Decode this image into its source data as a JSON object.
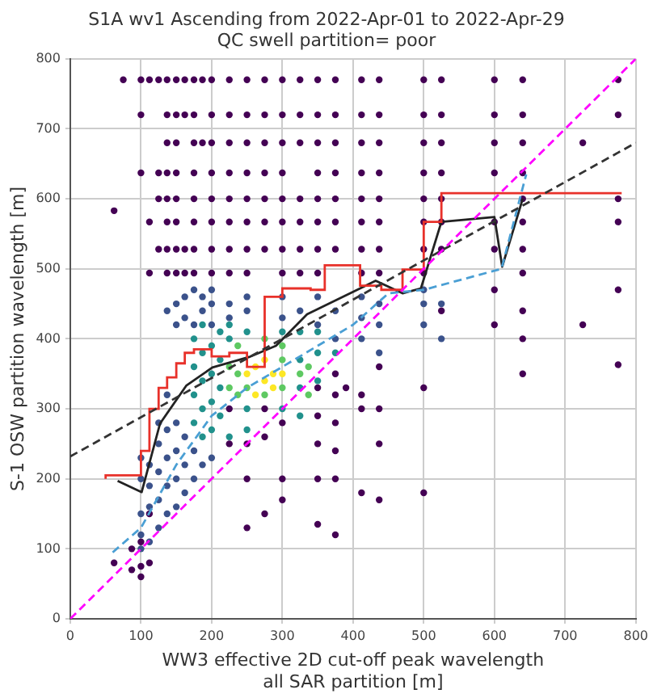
{
  "chart_data": {
    "type": "scatter",
    "title": "S1A wv1 Ascending from 2022-Apr-01 to 2022-Apr-29",
    "subtitle": "QC swell partition= poor",
    "xlabel": "WW3 effective 2D cut-off peak wavelength\nall SAR partition [m]",
    "ylabel": "S-1 OSW partition wavelength [m]",
    "xlim": [
      0,
      800
    ],
    "ylim": [
      0,
      800
    ],
    "xticks": [
      0,
      100,
      200,
      300,
      400,
      500,
      600,
      700,
      800
    ],
    "yticks": [
      0,
      100,
      200,
      300,
      400,
      500,
      600,
      700,
      800
    ],
    "grid": true,
    "legend": false,
    "marker": "circle",
    "series": [
      {
        "type": "scatter",
        "color": "#440154",
        "x": [
          75,
          100,
          112,
          125,
          137,
          150,
          162,
          175,
          187,
          200,
          225,
          250,
          275,
          300,
          325,
          350,
          375,
          412,
          437,
          500,
          525,
          600,
          640,
          775,
          100,
          137,
          150,
          162,
          175,
          200,
          225,
          250,
          275,
          300,
          325,
          350,
          375,
          412,
          437,
          500,
          525,
          600,
          640,
          775,
          137,
          150,
          175,
          187,
          200,
          225,
          250,
          275,
          300,
          325,
          350,
          375,
          412,
          437,
          500,
          525,
          600,
          640,
          725,
          100,
          125,
          137,
          150,
          175,
          200,
          225,
          250,
          275,
          300,
          350,
          375,
          412,
          437,
          500,
          525,
          600,
          640,
          125,
          137,
          150,
          175,
          200,
          225,
          250,
          275,
          300,
          325,
          350,
          375,
          412,
          437,
          500,
          525,
          640,
          775,
          112,
          137,
          150,
          175,
          200,
          225,
          250,
          275,
          300,
          325,
          350,
          375,
          412,
          437,
          500,
          525,
          600,
          640,
          775,
          125,
          137,
          150,
          162,
          175,
          200,
          225,
          250,
          275,
          300,
          325,
          350,
          375,
          412,
          437,
          500,
          525,
          600,
          640,
          112,
          137,
          150,
          162,
          175,
          200,
          225,
          250,
          300,
          325,
          350,
          412,
          437,
          500,
          640,
          62,
          725,
          775,
          775,
          640,
          640,
          640,
          600,
          600,
          390,
          350,
          350,
          350,
          350,
          350,
          375,
          375,
          375,
          375,
          375,
          375,
          412,
          412,
          412,
          437,
          437,
          437,
          437,
          500,
          500,
          525,
          100,
          100,
          100,
          87,
          87,
          62,
          112,
          112,
          225,
          225,
          250,
          250,
          250,
          275,
          275,
          275,
          300,
          300,
          300
        ],
        "values": [
          770,
          770,
          770,
          770,
          770,
          770,
          770,
          770,
          770,
          770,
          770,
          770,
          770,
          770,
          770,
          770,
          770,
          770,
          770,
          770,
          770,
          770,
          770,
          770,
          720,
          720,
          720,
          720,
          720,
          720,
          720,
          720,
          720,
          720,
          720,
          720,
          720,
          720,
          720,
          720,
          720,
          720,
          720,
          720,
          680,
          680,
          680,
          680,
          680,
          680,
          680,
          680,
          680,
          680,
          680,
          680,
          680,
          680,
          680,
          680,
          680,
          680,
          680,
          637,
          637,
          637,
          637,
          637,
          637,
          637,
          637,
          637,
          637,
          637,
          637,
          637,
          637,
          637,
          637,
          637,
          637,
          600,
          600,
          600,
          600,
          600,
          600,
          600,
          600,
          600,
          600,
          600,
          600,
          600,
          600,
          600,
          600,
          600,
          600,
          567,
          567,
          567,
          567,
          567,
          567,
          567,
          567,
          567,
          567,
          567,
          567,
          567,
          567,
          567,
          567,
          567,
          567,
          567,
          528,
          528,
          528,
          528,
          528,
          528,
          528,
          528,
          528,
          528,
          528,
          528,
          528,
          528,
          528,
          528,
          528,
          528,
          528,
          494,
          494,
          494,
          494,
          494,
          494,
          494,
          494,
          494,
          494,
          494,
          494,
          494,
          494,
          494,
          583,
          420,
          363,
          470,
          440,
          400,
          350,
          470,
          420,
          330,
          330,
          290,
          250,
          200,
          135,
          350,
          320,
          280,
          240,
          200,
          120,
          320,
          300,
          180,
          360,
          300,
          250,
          170,
          330,
          180,
          440,
          60,
          75,
          110,
          70,
          100,
          80,
          80,
          150,
          300,
          250,
          250,
          200,
          130,
          300,
          260,
          150,
          280,
          200,
          170
        ]
      },
      {
        "type": "scatter",
        "color": "#3b528b",
        "x": [
          100,
          100,
          100,
          100,
          100,
          112,
          112,
          112,
          112,
          125,
          125,
          125,
          125,
          125,
          137,
          137,
          137,
          137,
          137,
          137,
          150,
          150,
          150,
          150,
          150,
          150,
          162,
          162,
          162,
          162,
          162,
          175,
          175,
          175,
          175,
          187,
          187,
          187,
          200,
          200,
          200,
          200,
          225,
          225,
          250,
          250,
          300,
          300,
          325,
          350,
          350,
          375,
          375,
          412,
          412,
          412,
          437,
          437,
          437,
          500,
          500,
          500,
          525,
          525
        ],
        "values": [
          100,
          120,
          150,
          200,
          230,
          110,
          160,
          190,
          220,
          130,
          170,
          210,
          250,
          280,
          150,
          190,
          230,
          270,
          320,
          440,
          160,
          200,
          240,
          280,
          420,
          450,
          180,
          220,
          260,
          430,
          460,
          200,
          240,
          420,
          470,
          220,
          440,
          460,
          230,
          420,
          450,
          470,
          430,
          450,
          440,
          460,
          430,
          460,
          440,
          420,
          460,
          400,
          440,
          400,
          430,
          460,
          380,
          420,
          450,
          420,
          450,
          470,
          400,
          450
        ]
      },
      {
        "type": "scatter",
        "color": "#21918c",
        "x": [
          175,
          175,
          175,
          175,
          187,
          187,
          187,
          187,
          187,
          200,
          200,
          200,
          200,
          212,
          212,
          212,
          212,
          225,
          225,
          225,
          250,
          250,
          250,
          300,
          300,
          325,
          325,
          325,
          325,
          350,
          350,
          350,
          375
        ],
        "values": [
          280,
          320,
          360,
          400,
          260,
          300,
          340,
          380,
          420,
          270,
          310,
          350,
          390,
          290,
          330,
          370,
          410,
          260,
          400,
          420,
          270,
          300,
          410,
          300,
          410,
          290,
          330,
          370,
          410,
          340,
          380,
          410,
          380
        ]
      },
      {
        "type": "scatter",
        "color": "#5ec962",
        "x": [
          225,
          225,
          237,
          237,
          237,
          250,
          275,
          275,
          300,
          300,
          300,
          325,
          337,
          337
        ],
        "values": [
          330,
          360,
          320,
          350,
          390,
          330,
          320,
          400,
          330,
          370,
          390,
          350,
          320,
          360
        ]
      },
      {
        "type": "scatter",
        "color": "#fde725",
        "x": [
          250,
          262,
          262,
          275,
          275,
          287,
          287,
          300
        ],
        "values": [
          350,
          320,
          360,
          340,
          370,
          330,
          350,
          350
        ]
      },
      {
        "type": "line",
        "color": "#ff00ff",
        "line_style": "dashed",
        "marker": "none",
        "x": [
          0,
          800
        ],
        "values": [
          0,
          800
        ]
      },
      {
        "type": "line",
        "color": "#333333",
        "line_style": "dashed",
        "marker": "none",
        "x": [
          0,
          800
        ],
        "values": [
          232,
          680
        ]
      },
      {
        "type": "line",
        "color": "#4a9fd4",
        "line_style": "dashed",
        "marker": "none",
        "x": [
          60,
          100,
          150,
          200,
          250,
          300,
          350,
          400,
          450,
          500,
          610,
          645
        ],
        "values": [
          95,
          130,
          220,
          290,
          330,
          360,
          390,
          420,
          465,
          470,
          500,
          635
        ]
      },
      {
        "type": "step",
        "color": "#e8312a",
        "line_style": "solid",
        "marker": "none",
        "x": [
          50,
          100,
          112,
          125,
          137,
          150,
          162,
          175,
          200,
          225,
          250,
          275,
          300,
          340,
          360,
          410,
          440,
          470,
          500,
          525,
          640,
          780
        ],
        "values": [
          200,
          205,
          240,
          300,
          330,
          345,
          365,
          380,
          385,
          375,
          380,
          360,
          460,
          472,
          470,
          505,
          476,
          470,
          499,
          567,
          608,
          608
        ]
      },
      {
        "type": "line",
        "color": "#222222",
        "line_style": "solid",
        "marker": "none",
        "x": [
          67,
          101,
          127,
          164,
          201,
          253,
          291,
          335,
          410,
          432,
          470,
          496,
          525,
          600,
          611,
          640
        ],
        "values": [
          197,
          181,
          279,
          333,
          359,
          374,
          390,
          435,
          472,
          483,
          465,
          472,
          567,
          574,
          503,
          600
        ]
      }
    ]
  }
}
